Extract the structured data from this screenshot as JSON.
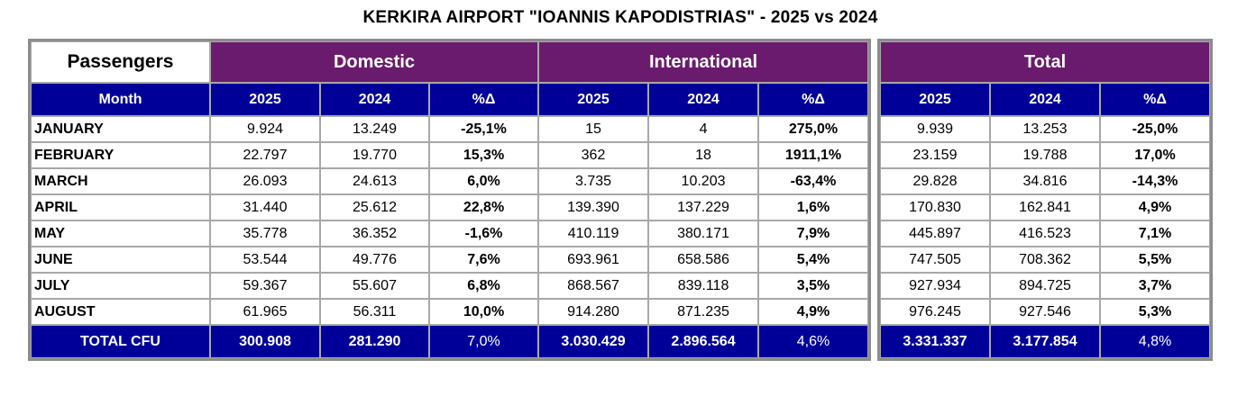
{
  "title": "KERKIRA AIRPORT \"IOANNIS KAPODISTRIAS\" - 2025 vs 2024",
  "header": {
    "passengers": "Passengers",
    "domestic": "Domestic",
    "international": "International",
    "total": "Total",
    "month": "Month",
    "y2025": "2025",
    "y2024": "2024",
    "pct": "%Δ"
  },
  "rows": [
    {
      "month": "JANUARY",
      "d25": "9.924",
      "d24": "13.249",
      "dp": "-25,1%",
      "i25": "15",
      "i24": "4",
      "ip": "275,0%",
      "t25": "9.939",
      "t24": "13.253",
      "tp": "-25,0%"
    },
    {
      "month": "FEBRUARY",
      "d25": "22.797",
      "d24": "19.770",
      "dp": "15,3%",
      "i25": "362",
      "i24": "18",
      "ip": "1911,1%",
      "t25": "23.159",
      "t24": "19.788",
      "tp": "17,0%"
    },
    {
      "month": "MARCH",
      "d25": "26.093",
      "d24": "24.613",
      "dp": "6,0%",
      "i25": "3.735",
      "i24": "10.203",
      "ip": "-63,4%",
      "t25": "29.828",
      "t24": "34.816",
      "tp": "-14,3%"
    },
    {
      "month": "APRIL",
      "d25": "31.440",
      "d24": "25.612",
      "dp": "22,8%",
      "i25": "139.390",
      "i24": "137.229",
      "ip": "1,6%",
      "t25": "170.830",
      "t24": "162.841",
      "tp": "4,9%"
    },
    {
      "month": "MAY",
      "d25": "35.778",
      "d24": "36.352",
      "dp": "-1,6%",
      "i25": "410.119",
      "i24": "380.171",
      "ip": "7,9%",
      "t25": "445.897",
      "t24": "416.523",
      "tp": "7,1%"
    },
    {
      "month": "JUNE",
      "d25": "53.544",
      "d24": "49.776",
      "dp": "7,6%",
      "i25": "693.961",
      "i24": "658.586",
      "ip": "5,4%",
      "t25": "747.505",
      "t24": "708.362",
      "tp": "5,5%"
    },
    {
      "month": "JULY",
      "d25": "59.367",
      "d24": "55.607",
      "dp": "6,8%",
      "i25": "868.567",
      "i24": "839.118",
      "ip": "3,5%",
      "t25": "927.934",
      "t24": "894.725",
      "tp": "3,7%"
    },
    {
      "month": "AUGUST",
      "d25": "61.965",
      "d24": "56.311",
      "dp": "10,0%",
      "i25": "914.280",
      "i24": "871.235",
      "ip": "4,9%",
      "t25": "976.245",
      "t24": "927.546",
      "tp": "5,3%"
    }
  ],
  "total": {
    "month": "TOTAL CFU",
    "d25": "300.908",
    "d24": "281.290",
    "dp": "7,0%",
    "i25": "3.030.429",
    "i24": "2.896.564",
    "ip": "4,6%",
    "t25": "3.331.337",
    "t24": "3.177.854",
    "tp": "4,8%"
  },
  "colors": {
    "group_header": "#6b1b6e",
    "sub_header": "#000099",
    "border": "#a8a8a8"
  }
}
